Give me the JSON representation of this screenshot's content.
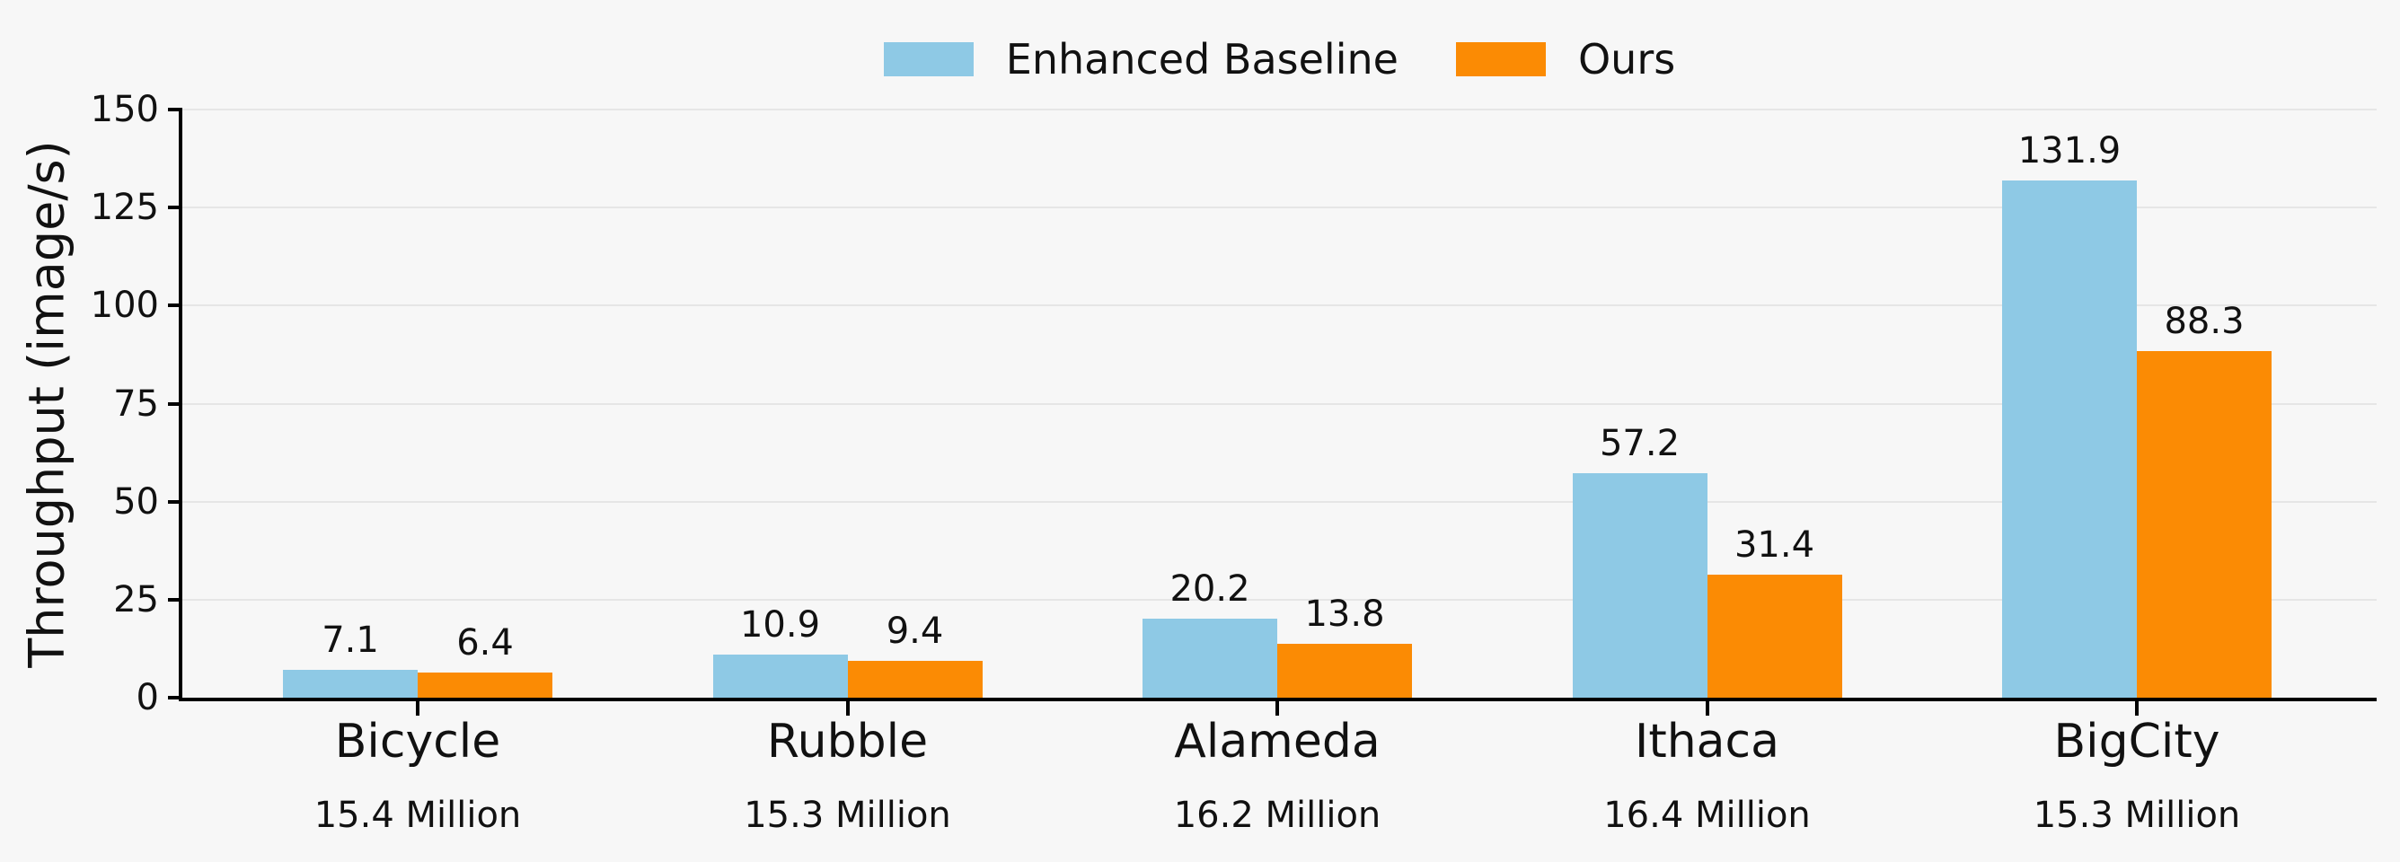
{
  "chart_data": {
    "type": "bar",
    "title": "",
    "categories": [
      "Bicycle",
      "Rubble",
      "Alameda",
      "Ithaca",
      "BigCity"
    ],
    "category_sublabels": [
      "15.4 Million",
      "15.3 Million",
      "16.2 Million",
      "16.4 Million",
      "15.3 Million"
    ],
    "series": [
      {
        "name": "Enhanced Baseline",
        "color": "#8ec9e5",
        "values": [
          7.1,
          10.9,
          20.2,
          57.2,
          131.9
        ]
      },
      {
        "name": "Ours",
        "color": "#fb8b04",
        "values": [
          6.4,
          9.4,
          13.8,
          31.4,
          88.3
        ]
      }
    ],
    "xlabel": "",
    "ylabel": "Throughput (image/s)",
    "ylim": [
      0,
      150
    ],
    "yticks": [
      0,
      25,
      50,
      75,
      100,
      125,
      150
    ],
    "grid": true,
    "gridline_color": "#e6e6e6",
    "axis_color": "#000000",
    "text_color": "#111111",
    "background_color": "#f7f7f7",
    "bar_value_labels": true,
    "legend_position": "top center"
  }
}
